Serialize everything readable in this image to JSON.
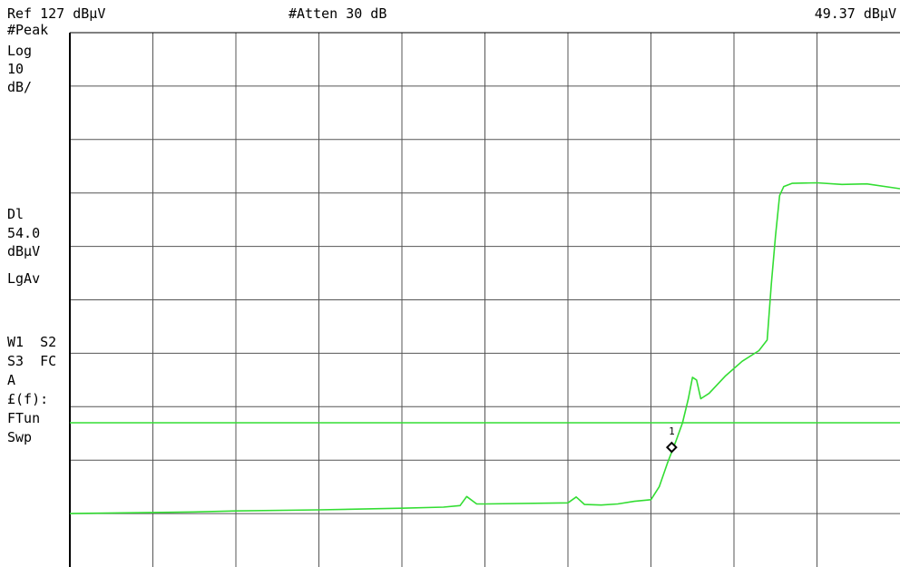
{
  "header": {
    "ref_level": "Ref 127 dBμV",
    "attenuation": "#Atten 30 dB",
    "marker_readout": "49.37 dBμV"
  },
  "side_panel": {
    "detector": "#Peak",
    "scale_type": "Log",
    "scale_value": "10",
    "scale_unit": "dB/",
    "display_line_label": "Dl",
    "display_line_value": "54.0",
    "display_line_unit": "dBμV",
    "averaging": "LgAv",
    "traces_row1": "W1  S2",
    "traces_row2": "S3  FC",
    "trace_mode": "A",
    "correction": "£(f):",
    "tune_mode": "FTun",
    "sweep_mode": "Swp"
  },
  "colors": {
    "trace": "#33dd33",
    "display_line": "#33dd33",
    "grid": "#555555",
    "frame": "#000000"
  },
  "chart_data": {
    "type": "line",
    "title": "",
    "xlabel": "",
    "ylabel": "",
    "ylim": [
      27,
      127
    ],
    "xlim": [
      0,
      10
    ],
    "grid": true,
    "y_per_division": 10,
    "display_line": 54.0,
    "marker": {
      "label": "1",
      "x": 7.25,
      "y": 49.4
    },
    "series": [
      {
        "x": [
          0,
          1,
          1.5,
          2,
          3,
          4,
          4.5,
          4.7,
          4.78,
          4.9,
          5,
          6,
          6.1,
          6.2,
          6.4,
          6.6,
          6.8,
          7,
          7.1,
          7.2,
          7.3,
          7.38,
          7.45,
          7.5,
          7.55,
          7.6,
          7.7,
          7.9,
          8.1,
          8.3,
          8.4,
          8.45,
          8.5,
          8.55,
          8.6,
          8.7,
          9,
          9.3,
          9.6,
          10
        ],
        "y": [
          37.0,
          37.2,
          37.3,
          37.5,
          37.7,
          38.0,
          38.2,
          38.5,
          40.2,
          38.8,
          38.8,
          39.0,
          40.1,
          38.7,
          38.6,
          38.8,
          39.3,
          39.6,
          42,
          46.5,
          50.5,
          54.0,
          58.5,
          62.5,
          62,
          58.5,
          59.5,
          62.8,
          65.5,
          67.5,
          69.5,
          80,
          89,
          96.5,
          98.2,
          98.8,
          98.9,
          98.6,
          98.7,
          97.8
        ]
      }
    ]
  }
}
